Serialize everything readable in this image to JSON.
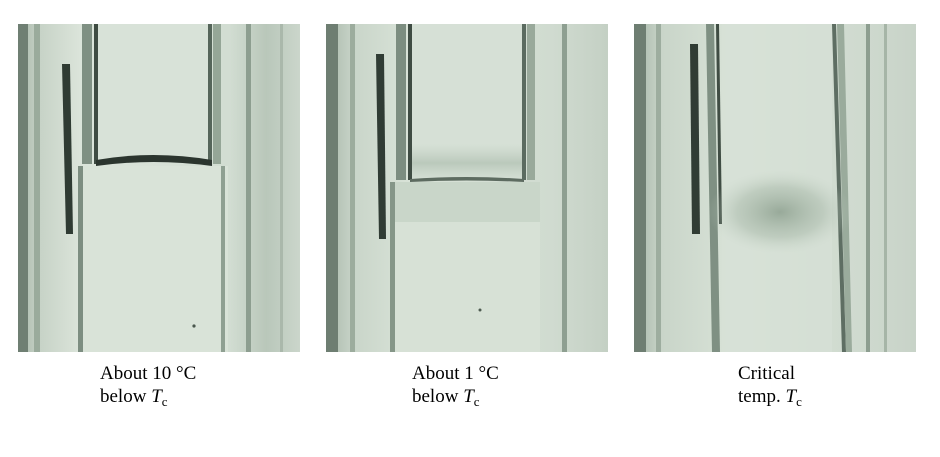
{
  "panels": [
    {
      "id": "panel-1",
      "state": "meniscus-sharp",
      "caption": {
        "line1": "About 10 °C",
        "line2_prefix": "below ",
        "symbol": "T",
        "subscript": "c"
      }
    },
    {
      "id": "panel-2",
      "state": "meniscus-fading",
      "caption": {
        "line1": "About 1 °C",
        "line2_prefix": "below ",
        "symbol": "T",
        "subscript": "c"
      }
    },
    {
      "id": "panel-3",
      "state": "no-meniscus-critical-opalescence",
      "caption": {
        "line1": "Critical",
        "line2_prefix": "temp. ",
        "symbol": "T",
        "subscript": "c"
      }
    }
  ],
  "colors": {
    "background": "#ffffff",
    "glass": "#c9d6c9",
    "liquid": "#d6e2d6",
    "vapor": "#cedccf",
    "meniscus": "#2b352e",
    "opalescence": "#8da08f"
  }
}
